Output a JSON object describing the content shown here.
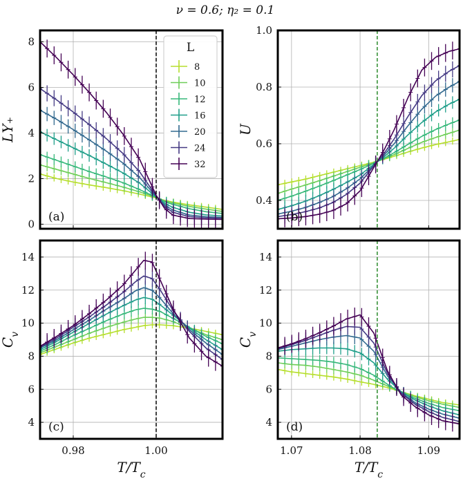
{
  "figure": {
    "suptitle": "ν = 0.6; η₂ = 0.1"
  },
  "colors": {
    "8": "#b5de2b",
    "10": "#6ece58",
    "12": "#35b779",
    "16": "#1f9e89",
    "20": "#31688e",
    "24": "#443983",
    "32": "#440154"
  },
  "legend": {
    "title": "L",
    "entries": [
      "8",
      "10",
      "12",
      "16",
      "20",
      "24",
      "32"
    ],
    "placement": "top-right of panel (a)"
  },
  "chart_data": [
    {
      "type": "line",
      "panel_label": "(a)",
      "ylabel": "LΥ₊",
      "xlabel": "",
      "xlim": [
        0.972,
        1.016
      ],
      "ylim": [
        -0.2,
        8.5
      ],
      "xticks": [
        0.98,
        1.0
      ],
      "xticklabels": [],
      "yticks": [
        0,
        2,
        4,
        6,
        8
      ],
      "vline": {
        "x": 1.0,
        "color": "#000000"
      },
      "grid": true,
      "x": [
        0.972,
        0.976,
        0.98,
        0.984,
        0.988,
        0.992,
        0.996,
        1.0,
        1.002,
        1.004,
        1.008,
        1.012,
        1.016
      ],
      "series": [
        {
          "name": "8",
          "values": [
            2.2,
            2.0,
            1.85,
            1.72,
            1.6,
            1.47,
            1.32,
            1.15,
            1.05,
            0.97,
            0.85,
            0.75,
            0.65
          ]
        },
        {
          "name": "10",
          "values": [
            2.6,
            2.4,
            2.2,
            2.0,
            1.82,
            1.63,
            1.42,
            1.17,
            1.03,
            0.93,
            0.78,
            0.66,
            0.56
          ]
        },
        {
          "name": "12",
          "values": [
            3.05,
            2.8,
            2.55,
            2.3,
            2.07,
            1.82,
            1.52,
            1.18,
            0.99,
            0.87,
            0.68,
            0.55,
            0.47
          ]
        },
        {
          "name": "16",
          "values": [
            4.05,
            3.7,
            3.35,
            3.0,
            2.63,
            2.25,
            1.8,
            1.2,
            0.92,
            0.74,
            0.52,
            0.41,
            0.36
          ]
        },
        {
          "name": "20",
          "values": [
            5.0,
            4.6,
            4.15,
            3.68,
            3.2,
            2.68,
            2.05,
            1.22,
            0.85,
            0.62,
            0.4,
            0.33,
            0.3
          ]
        },
        {
          "name": "24",
          "values": [
            5.95,
            5.45,
            4.92,
            4.35,
            3.75,
            3.1,
            2.3,
            1.24,
            0.78,
            0.52,
            0.33,
            0.28,
            0.26
          ]
        },
        {
          "name": "32",
          "values": [
            8.0,
            7.3,
            6.55,
            5.75,
            4.9,
            3.95,
            2.85,
            1.27,
            0.7,
            0.4,
            0.25,
            0.22,
            0.21
          ]
        }
      ]
    },
    {
      "type": "line",
      "panel_label": "(b)",
      "ylabel": "U",
      "xlabel": "",
      "xlim": [
        1.068,
        1.0945
      ],
      "ylim": [
        0.3,
        1.0
      ],
      "xticks": [
        1.07,
        1.08,
        1.09
      ],
      "xticklabels": [],
      "yticks": [
        0.4,
        0.6,
        0.8,
        1.0
      ],
      "yticklabels": [
        "0.4",
        "0.6",
        "0.8",
        "1.0"
      ],
      "vline": {
        "x": 1.0825,
        "color": "#2a8a2a"
      },
      "grid": true,
      "x": [
        1.068,
        1.07,
        1.072,
        1.074,
        1.076,
        1.078,
        1.08,
        1.082,
        1.0835,
        1.085,
        1.087,
        1.089,
        1.091,
        1.093,
        1.0945
      ],
      "series": [
        {
          "name": "8",
          "values": [
            0.455,
            0.465,
            0.475,
            0.487,
            0.499,
            0.511,
            0.523,
            0.535,
            0.545,
            0.556,
            0.571,
            0.585,
            0.597,
            0.607,
            0.615
          ]
        },
        {
          "name": "10",
          "values": [
            0.425,
            0.44,
            0.454,
            0.469,
            0.485,
            0.501,
            0.517,
            0.533,
            0.547,
            0.562,
            0.584,
            0.605,
            0.622,
            0.637,
            0.648
          ]
        },
        {
          "name": "12",
          "values": [
            0.4,
            0.415,
            0.432,
            0.45,
            0.469,
            0.489,
            0.509,
            0.531,
            0.549,
            0.569,
            0.598,
            0.626,
            0.65,
            0.67,
            0.684
          ]
        },
        {
          "name": "16",
          "values": [
            0.368,
            0.381,
            0.397,
            0.416,
            0.438,
            0.463,
            0.49,
            0.527,
            0.554,
            0.585,
            0.632,
            0.675,
            0.712,
            0.74,
            0.757
          ]
        },
        {
          "name": "20",
          "values": [
            0.352,
            0.362,
            0.375,
            0.392,
            0.413,
            0.441,
            0.476,
            0.524,
            0.56,
            0.601,
            0.664,
            0.722,
            0.768,
            0.8,
            0.82
          ]
        },
        {
          "name": "24",
          "values": [
            0.343,
            0.35,
            0.36,
            0.373,
            0.392,
            0.421,
            0.461,
            0.522,
            0.566,
            0.618,
            0.697,
            0.77,
            0.822,
            0.856,
            0.876
          ]
        },
        {
          "name": "32",
          "values": [
            0.335,
            0.338,
            0.343,
            0.351,
            0.364,
            0.388,
            0.434,
            0.516,
            0.578,
            0.651,
            0.764,
            0.86,
            0.905,
            0.926,
            0.935
          ]
        }
      ]
    },
    {
      "type": "line",
      "panel_label": "(c)",
      "ylabel": "C_v",
      "xlabel": "T/T_c",
      "xlim": [
        0.972,
        1.016
      ],
      "ylim": [
        3.0,
        15.0
      ],
      "xticks": [
        0.98,
        1.0
      ],
      "xticklabels": [
        "0.98",
        "1.00"
      ],
      "yticks": [
        4,
        6,
        8,
        10,
        12,
        14
      ],
      "vline": {
        "x": 1.0,
        "color": "#000000"
      },
      "grid": true,
      "x": [
        0.972,
        0.976,
        0.98,
        0.984,
        0.988,
        0.992,
        0.995,
        0.997,
        0.999,
        1.001,
        1.004,
        1.008,
        1.012,
        1.016
      ],
      "series": [
        {
          "name": "8",
          "values": [
            8.1,
            8.45,
            8.8,
            9.1,
            9.35,
            9.6,
            9.75,
            9.85,
            9.9,
            9.9,
            9.85,
            9.7,
            9.5,
            9.3
          ]
        },
        {
          "name": "10",
          "values": [
            8.2,
            8.6,
            9.0,
            9.4,
            9.75,
            10.05,
            10.25,
            10.35,
            10.35,
            10.3,
            10.1,
            9.7,
            9.3,
            9.0
          ]
        },
        {
          "name": "12",
          "values": [
            8.3,
            8.75,
            9.25,
            9.7,
            10.15,
            10.55,
            10.8,
            10.9,
            10.85,
            10.7,
            10.3,
            9.75,
            9.2,
            8.75
          ]
        },
        {
          "name": "16",
          "values": [
            8.4,
            8.9,
            9.45,
            10.0,
            10.55,
            11.05,
            11.4,
            11.55,
            11.45,
            11.1,
            10.5,
            9.7,
            9.0,
            8.4
          ]
        },
        {
          "name": "20",
          "values": [
            8.5,
            9.0,
            9.6,
            10.2,
            10.85,
            11.45,
            11.95,
            12.15,
            12.0,
            11.5,
            10.6,
            9.6,
            8.8,
            8.1
          ]
        },
        {
          "name": "24",
          "values": [
            8.55,
            9.1,
            9.75,
            10.4,
            11.1,
            11.85,
            12.5,
            12.85,
            12.7,
            12.0,
            10.8,
            9.5,
            8.5,
            7.8
          ]
        },
        {
          "name": "32",
          "values": [
            8.6,
            9.2,
            9.85,
            10.6,
            11.4,
            12.3,
            13.2,
            13.8,
            13.7,
            12.6,
            10.9,
            9.1,
            8.0,
            7.4
          ]
        }
      ]
    },
    {
      "type": "line",
      "panel_label": "(d)",
      "ylabel": "C_v",
      "xlabel": "T/T_c",
      "xlim": [
        1.068,
        1.0945
      ],
      "ylim": [
        3.0,
        15.0
      ],
      "xticks": [
        1.07,
        1.08,
        1.09
      ],
      "xticklabels": [
        "1.07",
        "1.08",
        "1.09"
      ],
      "yticks": [
        4,
        6,
        8,
        10,
        12,
        14
      ],
      "vline": {
        "x": 1.0825,
        "color": "#2a8a2a"
      },
      "grid": true,
      "x": [
        1.068,
        1.07,
        1.072,
        1.074,
        1.076,
        1.078,
        1.08,
        1.082,
        1.084,
        1.086,
        1.088,
        1.09,
        1.092,
        1.0945
      ],
      "series": [
        {
          "name": "8",
          "values": [
            7.2,
            7.05,
            6.95,
            6.85,
            6.75,
            6.62,
            6.45,
            6.3,
            6.1,
            5.85,
            5.6,
            5.4,
            5.2,
            5.05
          ]
        },
        {
          "name": "10",
          "values": [
            7.6,
            7.5,
            7.45,
            7.35,
            7.2,
            7.05,
            6.85,
            6.55,
            6.2,
            5.85,
            5.55,
            5.3,
            5.1,
            4.9
          ]
        },
        {
          "name": "12",
          "values": [
            7.9,
            7.85,
            7.8,
            7.75,
            7.65,
            7.5,
            7.25,
            6.85,
            6.3,
            5.8,
            5.45,
            5.15,
            4.9,
            4.7
          ]
        },
        {
          "name": "16",
          "values": [
            8.3,
            8.4,
            8.45,
            8.5,
            8.5,
            8.45,
            8.2,
            7.6,
            6.6,
            5.85,
            5.35,
            5.0,
            4.7,
            4.45
          ]
        },
        {
          "name": "20",
          "values": [
            8.4,
            8.6,
            8.8,
            9.0,
            9.15,
            9.25,
            9.1,
            8.3,
            6.8,
            5.8,
            5.2,
            4.8,
            4.5,
            4.25
          ]
        },
        {
          "name": "24",
          "values": [
            8.45,
            8.7,
            8.95,
            9.25,
            9.55,
            9.8,
            9.75,
            8.8,
            6.95,
            5.75,
            5.1,
            4.65,
            4.3,
            4.05
          ]
        },
        {
          "name": "32",
          "values": [
            8.5,
            8.75,
            9.05,
            9.4,
            9.8,
            10.25,
            10.5,
            9.4,
            7.1,
            5.65,
            4.95,
            4.45,
            4.1,
            3.9
          ]
        }
      ]
    }
  ]
}
